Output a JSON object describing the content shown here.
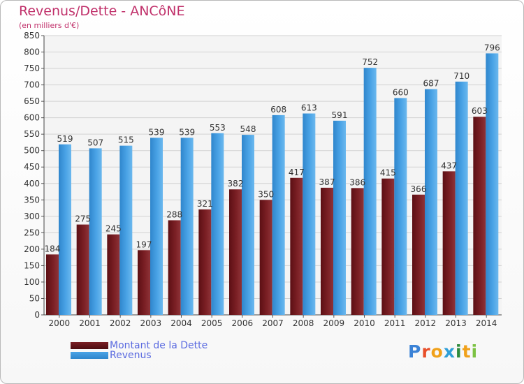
{
  "chart_data": {
    "type": "bar",
    "title": "Revenus/Dette - ANCôNE",
    "subtitle": "(en milliers d'€)",
    "xlabel": "",
    "ylabel": "",
    "ylim": [
      0,
      850
    ],
    "ytick_step": 50,
    "grid": true,
    "legend_position": "bottom-left",
    "categories": [
      "2000",
      "2001",
      "2002",
      "2003",
      "2004",
      "2005",
      "2006",
      "2007",
      "2008",
      "2009",
      "2010",
      "2011",
      "2012",
      "2013",
      "2014"
    ],
    "series": [
      {
        "name": "Montant de la Dette",
        "color": "#7a1f24",
        "values": [
          184,
          275,
          245,
          197,
          288,
          321,
          382,
          350,
          417,
          387,
          386,
          415,
          366,
          437,
          603
        ]
      },
      {
        "name": "Revenus",
        "color": "#4aa3e6",
        "values": [
          519,
          507,
          515,
          539,
          539,
          553,
          548,
          608,
          613,
          591,
          752,
          660,
          687,
          710,
          796
        ]
      }
    ]
  },
  "brand": {
    "text": "Proxiti"
  }
}
